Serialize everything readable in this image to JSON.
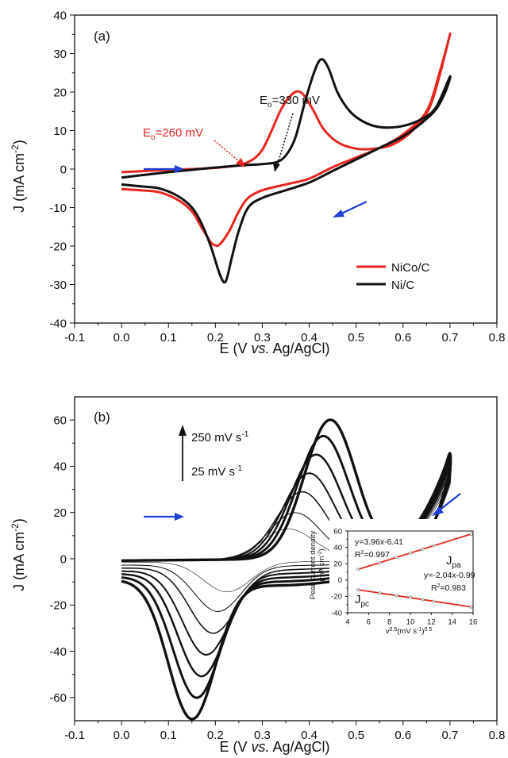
{
  "chart_data": [
    {
      "type": "line",
      "panel_label": "(a)",
      "xlabel": "E (V vs. Ag/AgCl)",
      "xlabel_parts": [
        "E (V ",
        "vs.",
        " Ag/AgCl)"
      ],
      "ylabel": "J (mA cm-2)",
      "xlim": [
        -0.1,
        0.8
      ],
      "ylim": [
        -40,
        40
      ],
      "x_ticks": [
        "-0.1",
        "0.0",
        "0.1",
        "0.2",
        "0.3",
        "0.4",
        "0.5",
        "0.6",
        "0.7",
        "0.8"
      ],
      "y_ticks": [
        "-40",
        "-30",
        "-20",
        "-10",
        "0",
        "10",
        "20",
        "30",
        "40"
      ],
      "grid": false,
      "legend_position": "bottom-right",
      "series": [
        {
          "name": "NiCo/C",
          "color": "#e8261f",
          "points": [
            [
              0,
              -0.8
            ],
            [
              0.05,
              -0.5
            ],
            [
              0.1,
              -0.2
            ],
            [
              0.15,
              0
            ],
            [
              0.2,
              0.3
            ],
            [
              0.25,
              1
            ],
            [
              0.28,
              2.5
            ],
            [
              0.3,
              5
            ],
            [
              0.32,
              10
            ],
            [
              0.34,
              15.5
            ],
            [
              0.36,
              19
            ],
            [
              0.375,
              20.2
            ],
            [
              0.39,
              19
            ],
            [
              0.41,
              15
            ],
            [
              0.43,
              10.5
            ],
            [
              0.46,
              7
            ],
            [
              0.5,
              5.3
            ],
            [
              0.54,
              5.3
            ],
            [
              0.58,
              6.5
            ],
            [
              0.62,
              10
            ],
            [
              0.66,
              17
            ],
            [
              0.7,
              35
            ],
            [
              0.68,
              26
            ],
            [
              0.65,
              15
            ],
            [
              0.6,
              9
            ],
            [
              0.55,
              5.5
            ],
            [
              0.5,
              3
            ],
            [
              0.45,
              0.5
            ],
            [
              0.4,
              -2.5
            ],
            [
              0.35,
              -4
            ],
            [
              0.3,
              -5.5
            ],
            [
              0.27,
              -7.5
            ],
            [
              0.25,
              -11
            ],
            [
              0.23,
              -16
            ],
            [
              0.21,
              -19.5
            ],
            [
              0.2,
              -19.8
            ],
            [
              0.19,
              -19
            ],
            [
              0.17,
              -15
            ],
            [
              0.15,
              -11
            ],
            [
              0.12,
              -8
            ],
            [
              0.08,
              -6
            ],
            [
              0.04,
              -5.5
            ],
            [
              0,
              -5.2
            ]
          ]
        },
        {
          "name": "Ni/C",
          "color": "#111111",
          "points": [
            [
              0,
              -2.2
            ],
            [
              0.05,
              -1.5
            ],
            [
              0.1,
              -0.8
            ],
            [
              0.15,
              -0.2
            ],
            [
              0.2,
              0.4
            ],
            [
              0.25,
              0.9
            ],
            [
              0.3,
              1.3
            ],
            [
              0.33,
              1.8
            ],
            [
              0.35,
              3.5
            ],
            [
              0.37,
              8
            ],
            [
              0.39,
              17
            ],
            [
              0.41,
              25
            ],
            [
              0.425,
              28.5
            ],
            [
              0.44,
              26.5
            ],
            [
              0.46,
              20
            ],
            [
              0.48,
              16
            ],
            [
              0.5,
              13.5
            ],
            [
              0.53,
              11.5
            ],
            [
              0.56,
              10.8
            ],
            [
              0.6,
              11.2
            ],
            [
              0.64,
              13
            ],
            [
              0.67,
              16
            ],
            [
              0.7,
              24
            ],
            [
              0.69,
              20
            ],
            [
              0.67,
              15.5
            ],
            [
              0.64,
              12
            ],
            [
              0.6,
              8.5
            ],
            [
              0.55,
              5.5
            ],
            [
              0.5,
              2.5
            ],
            [
              0.45,
              -0.5
            ],
            [
              0.4,
              -3.5
            ],
            [
              0.35,
              -5.5
            ],
            [
              0.3,
              -7.5
            ],
            [
              0.27,
              -10
            ],
            [
              0.25,
              -16
            ],
            [
              0.235,
              -23
            ],
            [
              0.222,
              -29.2
            ],
            [
              0.21,
              -27.5
            ],
            [
              0.19,
              -20
            ],
            [
              0.17,
              -14
            ],
            [
              0.15,
              -10
            ],
            [
              0.12,
              -7
            ],
            [
              0.08,
              -5
            ],
            [
              0.04,
              -4.5
            ],
            [
              0,
              -4
            ]
          ]
        }
      ],
      "annotations": [
        {
          "text_main": "E",
          "text_sub": "o",
          "text_rest": "=330 mV",
          "color": "#111111"
        },
        {
          "text_main": "E",
          "text_sub": "o",
          "text_rest": "=260 mV",
          "color": "#e8261f"
        }
      ],
      "scan_arrow_color": "#1f3fd6"
    },
    {
      "type": "line",
      "panel_label": "(b)",
      "xlabel": "E (V vs. Ag/AgCl)",
      "xlabel_parts": [
        "E (V ",
        "vs.",
        " Ag/AgCl)"
      ],
      "ylabel": "J (mA cm-2)",
      "xlim": [
        -0.1,
        0.8
      ],
      "ylim": [
        -70,
        70
      ],
      "x_ticks": [
        "-0.1",
        "0.0",
        "0.1",
        "0.2",
        "0.3",
        "0.4",
        "0.5",
        "0.6",
        "0.7",
        "0.8"
      ],
      "y_ticks": [
        "-60",
        "-40",
        "-20",
        "0",
        "20",
        "40",
        "60"
      ],
      "grid": false,
      "scan_rate_high": "250 mV s-1",
      "scan_rate_low": "25 mV s-1",
      "scan_rates": [
        {
          "anodic_peak": 13,
          "anodic_x": 0.355,
          "cathodic_peak": -13,
          "cathodic_x": 0.225
        },
        {
          "anodic_peak": 20,
          "anodic_x": 0.37,
          "cathodic_peak": -20,
          "cathodic_x": 0.205
        },
        {
          "anodic_peak": 29,
          "anodic_x": 0.385,
          "cathodic_peak": -28,
          "cathodic_x": 0.195
        },
        {
          "anodic_peak": 37,
          "anodic_x": 0.4,
          "cathodic_peak": -36,
          "cathodic_x": 0.18
        },
        {
          "anodic_peak": 45,
          "anodic_x": 0.415,
          "cathodic_peak": -44,
          "cathodic_x": 0.17
        },
        {
          "anodic_peak": 53,
          "anodic_x": 0.43,
          "cathodic_peak": -52,
          "cathodic_x": 0.16
        },
        {
          "anodic_peak": 60,
          "anodic_x": 0.445,
          "cathodic_peak": -60,
          "cathodic_x": 0.15
        }
      ],
      "inset": {
        "ylabel": "Peak current density (mA cm-2)",
        "ylabel_line1": "Peak current density",
        "ylabel_line2": "(mA cm",
        "xlabel": "v0.5 (mV s-1)0.5",
        "xlim": [
          4,
          16
        ],
        "ylim": [
          -40,
          60
        ],
        "x_ticks": [
          "4",
          "6",
          "8",
          "10",
          "12",
          "14",
          "16"
        ],
        "y_ticks": [
          "-40",
          "-20",
          "0",
          "20",
          "40",
          "60"
        ],
        "fit_color": "#e8261f",
        "series": [
          {
            "label": "Jpa",
            "label_main": "J",
            "label_sub": "pa",
            "equation": "y=3.96x-6.41",
            "r2": "R2=0.997",
            "x": [
              5,
              7.07,
              8.66,
              10,
              11.18,
              12.25,
              15.81
            ],
            "y": [
              13,
              21,
              28,
              33,
              38,
              42,
              56
            ]
          },
          {
            "label": "Jpc",
            "label_main": "J",
            "label_sub": "pc",
            "equation": "y=-2.04x-0.99",
            "r2": "R2=0.983",
            "x": [
              5,
              7.07,
              8.66,
              10,
              11.18,
              12.25,
              15.81
            ],
            "y": [
              -12,
              -16,
              -19,
              -21,
              -24,
              -26,
              -33
            ]
          }
        ]
      },
      "scan_arrow_color": "#1f3fd6"
    }
  ]
}
